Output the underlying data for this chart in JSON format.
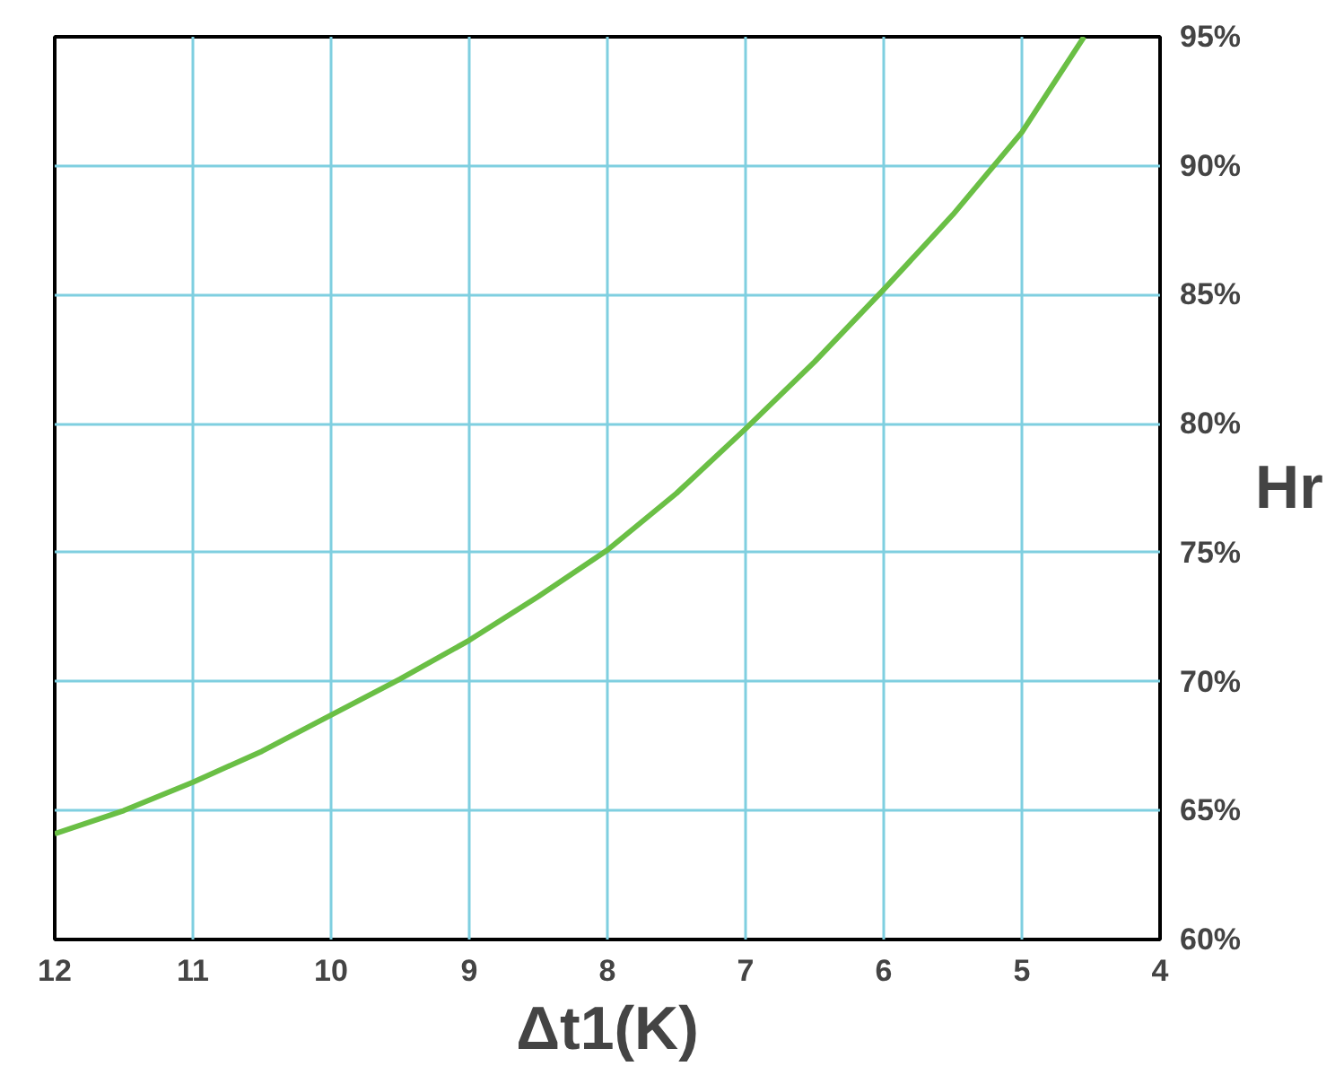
{
  "chart_data": {
    "type": "line",
    "xlabel": "Δt1(K)",
    "ylabel": "Hr",
    "x": [
      12,
      11.5,
      11,
      10.5,
      10,
      9.5,
      9,
      8.5,
      8,
      7.5,
      7,
      6.5,
      6,
      5.5,
      5,
      4.55
    ],
    "series": [
      {
        "color": "#6abf45",
        "values": [
          64.1,
          65.0,
          66.1,
          67.3,
          68.7,
          70.1,
          71.6,
          73.3,
          75.1,
          77.3,
          79.8,
          82.4,
          85.2,
          88.1,
          91.3,
          95.0
        ]
      }
    ],
    "xlim": [
      12,
      4
    ],
    "ylim": [
      60,
      95
    ],
    "xticks": [
      12,
      11,
      10,
      9,
      8,
      7,
      6,
      5,
      4
    ],
    "yticks": [
      {
        "value": 60,
        "label": "60%"
      },
      {
        "value": 65,
        "label": "65%"
      },
      {
        "value": 70,
        "label": "70%"
      },
      {
        "value": 75,
        "label": "75%"
      },
      {
        "value": 80,
        "label": "80%"
      },
      {
        "value": 85,
        "label": "85%"
      },
      {
        "value": 90,
        "label": "90%"
      },
      {
        "value": 95,
        "label": "95%"
      }
    ],
    "grid": true,
    "marker": "none",
    "line_style": "solid"
  }
}
